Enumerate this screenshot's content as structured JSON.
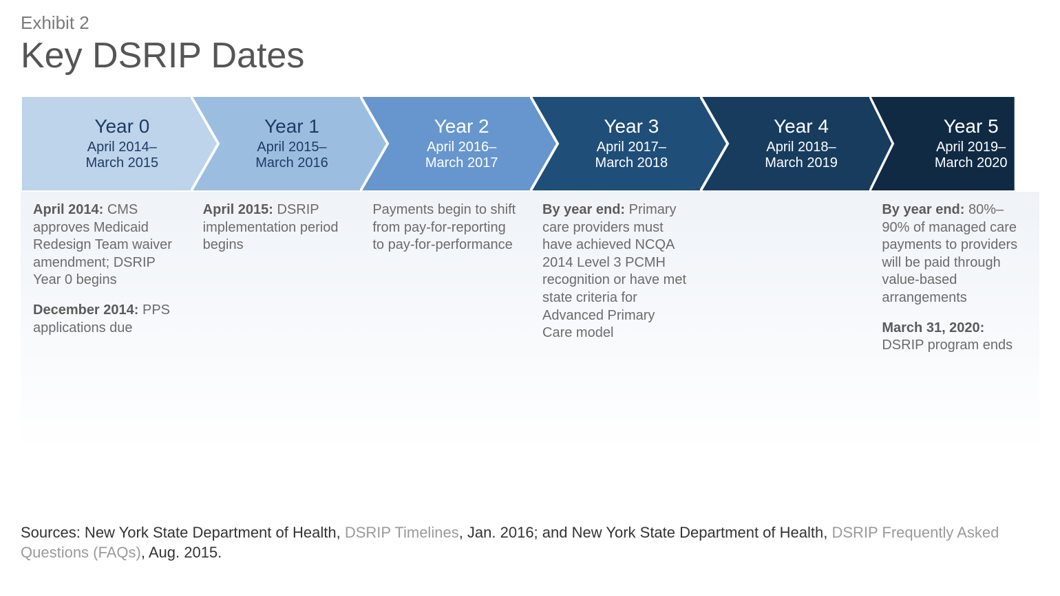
{
  "exhibit_label": "Exhibit 2",
  "title": "Key DSRIP Dates",
  "chevron": {
    "height": 140,
    "notch": 42,
    "stroke": "#ffffff",
    "stroke_width": 4
  },
  "detail": {
    "grad_top": "#eff3f8",
    "grad_bottom": "#ffffff",
    "min_height": 380
  },
  "columns": [
    {
      "year": "Year 0",
      "dates": "April 2014–\nMarch 2015",
      "fill": "#bdd4ea",
      "text_color": "#1f3b66",
      "first": true,
      "entries": [
        {
          "lead": "April 2014:",
          "body": " CMS approves Medicaid Redesign Team waiver amendment; DSRIP Year 0 begins"
        },
        {
          "lead": "December 2014:",
          "body": " PPS applications due"
        }
      ]
    },
    {
      "year": "Year 1",
      "dates": "April 2015–\nMarch 2016",
      "fill": "#9bbee0",
      "text_color": "#1f3b66",
      "entries": [
        {
          "lead": "April 2015:",
          "body": " DSRIP implementation period begins"
        }
      ]
    },
    {
      "year": "Year 2",
      "dates": "April 2016–\nMarch 2017",
      "fill": "#6696cd",
      "text_color": "#ffffff",
      "entries": [
        {
          "lead": "",
          "body": "Payments begin to shift from pay-for-reporting to pay-for-performance"
        }
      ]
    },
    {
      "year": "Year 3",
      "dates": "April 2017–\nMarch 2018",
      "fill": "#1f4e79",
      "text_color": "#ffffff",
      "entries": [
        {
          "lead": "By year end:",
          "body": " Primary care providers must have achieved NCQA 2014 Level 3 PCMH recognition or have met state criteria for Advanced Primary Care model"
        }
      ]
    },
    {
      "year": "Year 4",
      "dates": "April 2018–\nMarch 2019",
      "fill": "#173c5e",
      "text_color": "#ffffff",
      "entries": []
    },
    {
      "year": "Year 5",
      "dates": "April 2019–\nMarch 2020",
      "fill": "#102a44",
      "text_color": "#ffffff",
      "last": true,
      "entries": [
        {
          "lead": "By year end:",
          "body": " 80%–90% of managed care payments to providers will be paid through value-based arrangements"
        },
        {
          "lead": "March 31, 2020:",
          "body": " DSRIP program ends"
        }
      ]
    }
  ],
  "sources": {
    "parts": [
      {
        "text": "Sources: New York State Department of Health, ",
        "link": false
      },
      {
        "text": "DSRIP Timelines",
        "link": true
      },
      {
        "text": ", Jan. 2016; and New York State Department of Health, ",
        "link": false
      },
      {
        "text": "DSRIP Frequently Asked Questions (FAQs)",
        "link": true
      },
      {
        "text": ", Aug. 2015.",
        "link": false
      }
    ]
  }
}
